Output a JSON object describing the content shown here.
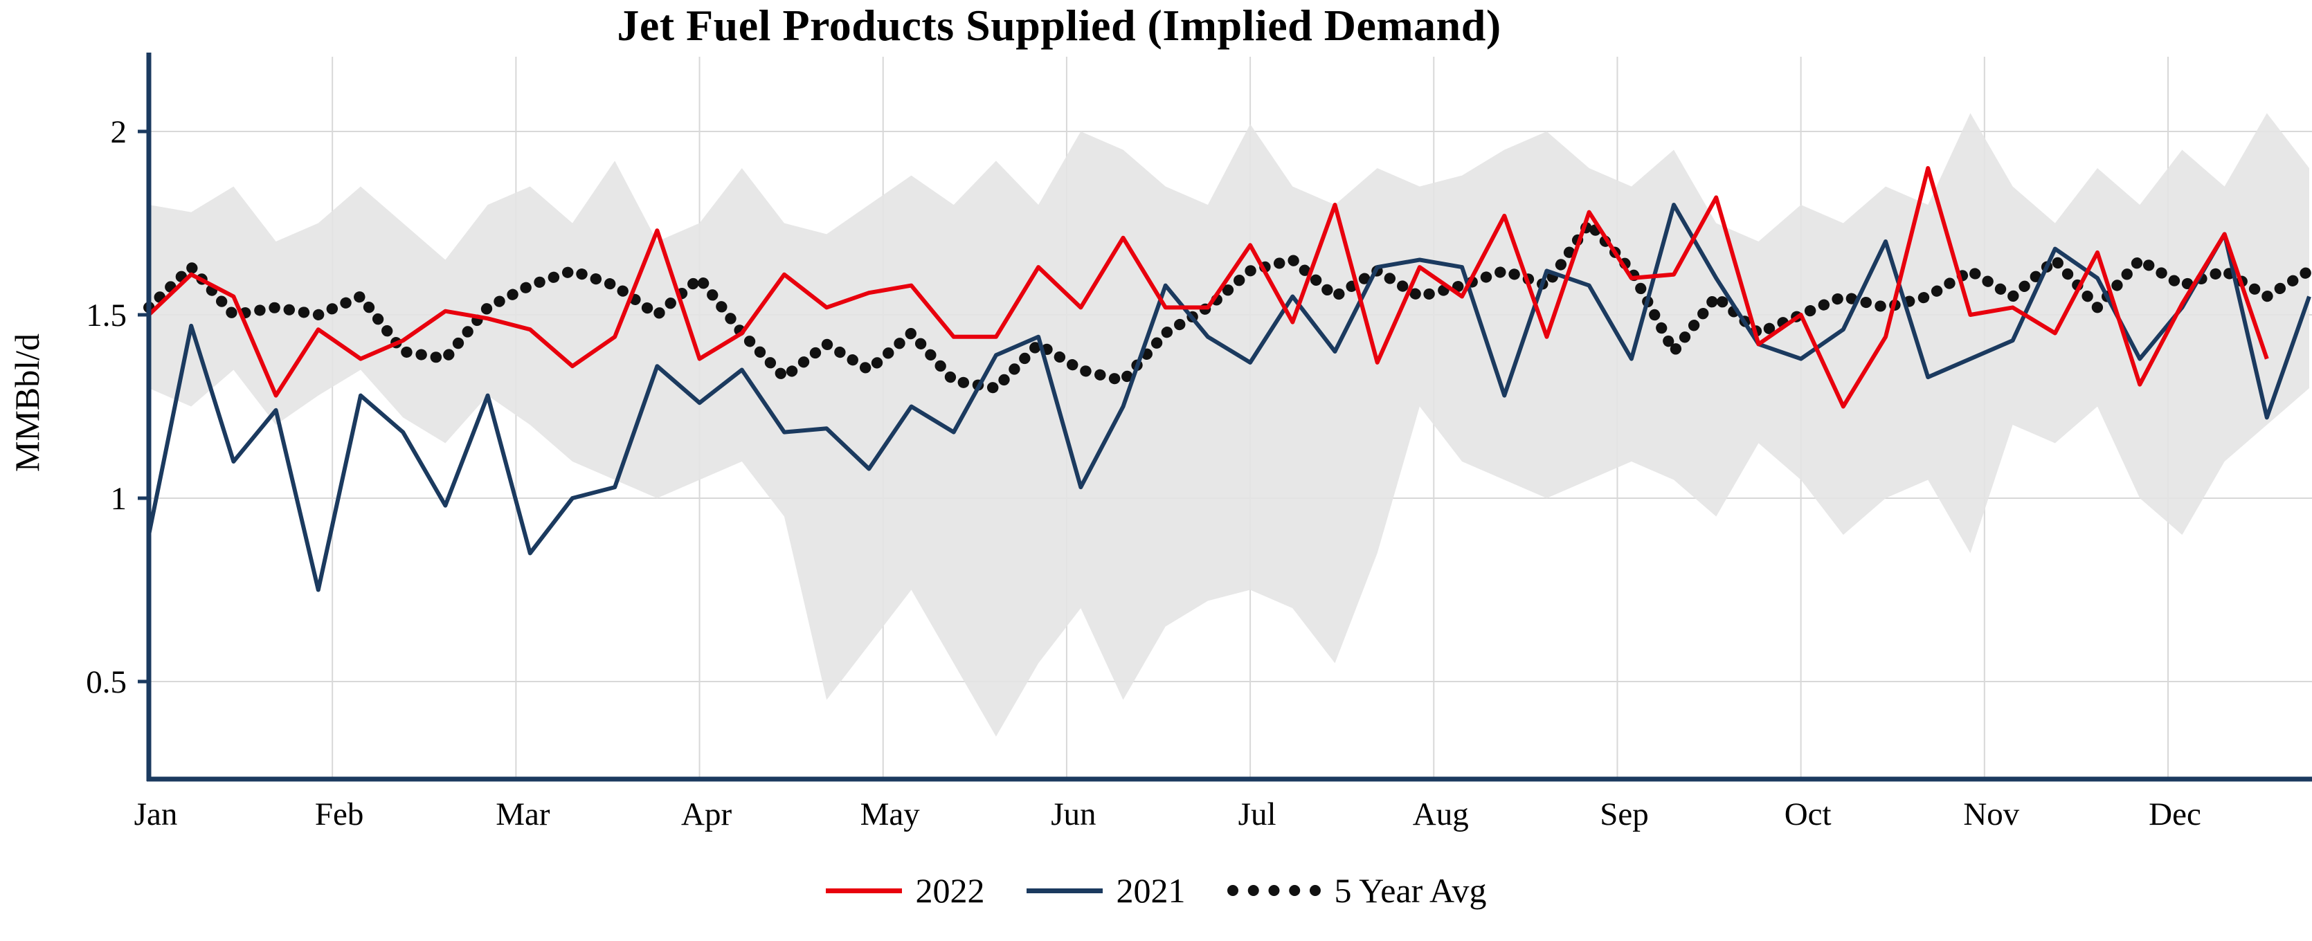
{
  "chart_data": {
    "type": "line",
    "title": "Jet Fuel Products Supplied (Implied Demand)",
    "ylabel": "MMBbl/d",
    "x_months": [
      "Jan",
      "Feb",
      "Mar",
      "Apr",
      "May",
      "Jun",
      "Jul",
      "Aug",
      "Sep",
      "Oct",
      "Nov",
      "Dec"
    ],
    "y_ticks": [
      {
        "value": 2,
        "label": "2"
      },
      {
        "value": 1.5,
        "label": "1.5"
      },
      {
        "value": 1,
        "label": "1"
      },
      {
        "value": 0.5,
        "label": "0.5"
      }
    ],
    "ylim": [
      0.23,
      2.2
    ],
    "weeks": 52,
    "grid": true,
    "legend_position": "bottom",
    "colors": {
      "grid": "#d8d8d8",
      "axis": "#1b3a5f",
      "band": "#e4e4e4"
    },
    "series": [
      {
        "name": "2022",
        "color": "#e8000d",
        "style": "solid",
        "values": [
          1.5,
          1.61,
          1.55,
          1.28,
          1.46,
          1.38,
          1.43,
          1.51,
          1.49,
          1.46,
          1.36,
          1.44,
          1.73,
          1.38,
          1.45,
          1.61,
          1.52,
          1.56,
          1.58,
          1.44,
          1.44,
          1.63,
          1.52,
          1.71,
          1.52,
          1.52,
          1.69,
          1.48,
          1.8,
          1.37,
          1.63,
          1.55,
          1.77,
          1.44,
          1.78,
          1.6,
          1.61,
          1.82,
          1.42,
          1.5,
          1.25,
          1.44,
          1.9,
          1.5,
          1.52,
          1.45,
          1.67,
          1.31,
          1.53,
          1.72,
          1.38
        ]
      },
      {
        "name": "2021",
        "color": "#1b3a5f",
        "style": "solid",
        "values": [
          0.9,
          1.47,
          1.1,
          1.24,
          0.75,
          1.28,
          1.18,
          0.98,
          1.28,
          0.85,
          1.0,
          1.03,
          1.36,
          1.26,
          1.35,
          1.18,
          1.19,
          1.08,
          1.25,
          1.18,
          1.39,
          1.44,
          1.03,
          1.25,
          1.58,
          1.44,
          1.37,
          1.55,
          1.4,
          1.63,
          1.65,
          1.63,
          1.28,
          1.62,
          1.58,
          1.38,
          1.8,
          1.6,
          1.42,
          1.38,
          1.46,
          1.7,
          1.33,
          1.38,
          1.43,
          1.68,
          1.6,
          1.38,
          1.52,
          1.72,
          1.22,
          1.55
        ]
      },
      {
        "name": "5 Year Avg",
        "color": "#111111",
        "style": "dotted",
        "values": [
          1.52,
          1.63,
          1.5,
          1.52,
          1.5,
          1.55,
          1.4,
          1.38,
          1.52,
          1.58,
          1.62,
          1.58,
          1.5,
          1.6,
          1.45,
          1.33,
          1.42,
          1.35,
          1.45,
          1.32,
          1.3,
          1.42,
          1.35,
          1.32,
          1.45,
          1.52,
          1.62,
          1.65,
          1.55,
          1.62,
          1.55,
          1.58,
          1.62,
          1.58,
          1.75,
          1.62,
          1.4,
          1.55,
          1.45,
          1.5,
          1.55,
          1.52,
          1.55,
          1.62,
          1.55,
          1.65,
          1.52,
          1.65,
          1.58,
          1.62,
          1.55,
          1.62
        ]
      }
    ],
    "band": {
      "name": "5-year range",
      "color": "#e4e4e4",
      "upper": [
        1.8,
        1.78,
        1.85,
        1.7,
        1.75,
        1.85,
        1.75,
        1.65,
        1.8,
        1.85,
        1.75,
        1.92,
        1.7,
        1.75,
        1.9,
        1.75,
        1.72,
        1.8,
        1.88,
        1.8,
        1.92,
        1.8,
        2.0,
        1.95,
        1.85,
        1.8,
        2.02,
        1.85,
        1.8,
        1.9,
        1.85,
        1.88,
        1.95,
        2.0,
        1.9,
        1.85,
        1.95,
        1.75,
        1.7,
        1.8,
        1.75,
        1.85,
        1.8,
        2.05,
        1.85,
        1.75,
        1.9,
        1.8,
        1.95,
        1.85,
        2.05,
        1.9
      ],
      "lower": [
        1.3,
        1.25,
        1.35,
        1.2,
        1.28,
        1.35,
        1.22,
        1.15,
        1.28,
        1.2,
        1.1,
        1.05,
        1.0,
        1.05,
        1.1,
        0.95,
        0.45,
        0.6,
        0.75,
        0.55,
        0.35,
        0.55,
        0.7,
        0.45,
        0.65,
        0.72,
        0.75,
        0.7,
        0.55,
        0.85,
        1.25,
        1.1,
        1.05,
        1.0,
        1.05,
        1.1,
        1.05,
        0.95,
        1.15,
        1.05,
        0.9,
        1.0,
        1.05,
        0.85,
        1.2,
        1.15,
        1.25,
        1.0,
        0.9,
        1.1,
        1.2,
        1.3
      ]
    }
  }
}
